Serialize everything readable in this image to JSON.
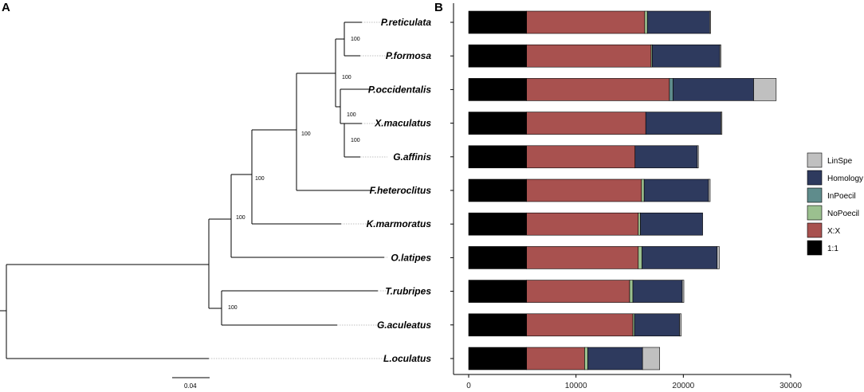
{
  "panels": {
    "a": "A",
    "b": "B"
  },
  "tree": {
    "scale_label": "0.04",
    "bootstrap": [
      "100",
      "100",
      "100",
      "100",
      "100",
      "100",
      "100",
      "100"
    ]
  },
  "chart_data": {
    "type": "bar",
    "orientation": "horizontal",
    "stacked": true,
    "title": "",
    "xlabel": "",
    "ylabel": "",
    "xlim": [
      0,
      30000
    ],
    "xticks": [
      0,
      10000,
      20000,
      30000
    ],
    "categories": [
      "P.reticulata",
      "P.formosa",
      "P.occidentalis",
      "X.maculatus",
      "G.affinis",
      "F.heteroclitus",
      "K.marmoratus",
      "O.latipes",
      "T.rubripes",
      "G.aculeatus",
      "L.oculatus"
    ],
    "series": [
      {
        "name": "1:1",
        "color": "#000000",
        "values": [
          5400,
          5400,
          5400,
          5400,
          5400,
          5400,
          5400,
          5400,
          5400,
          5400,
          5400
        ]
      },
      {
        "name": "X:X",
        "color": "#a8514f",
        "values": [
          11000,
          11600,
          13300,
          11100,
          10100,
          10700,
          10400,
          10400,
          9600,
          9900,
          5400
        ]
      },
      {
        "name": "NoPoecil",
        "color": "#9bc08f",
        "values": [
          250,
          100,
          0,
          0,
          0,
          250,
          200,
          350,
          300,
          150,
          300
        ]
      },
      {
        "name": "InPoecil",
        "color": "#5f8c8c",
        "values": [
          0,
          0,
          350,
          0,
          0,
          0,
          0,
          0,
          0,
          0,
          0
        ]
      },
      {
        "name": "Homology",
        "color": "#2e3a5e",
        "values": [
          5800,
          6300,
          7500,
          7000,
          5800,
          6000,
          5800,
          7000,
          4600,
          4200,
          5100
        ]
      },
      {
        "name": "LinSpe",
        "color": "#c0c0c0",
        "values": [
          100,
          100,
          2100,
          100,
          100,
          150,
          0,
          200,
          150,
          150,
          1600
        ]
      }
    ],
    "legend": {
      "position": "right",
      "order": [
        "LinSpe",
        "Homology",
        "InPoecil",
        "NoPoecil",
        "X:X",
        "1:1"
      ]
    }
  }
}
